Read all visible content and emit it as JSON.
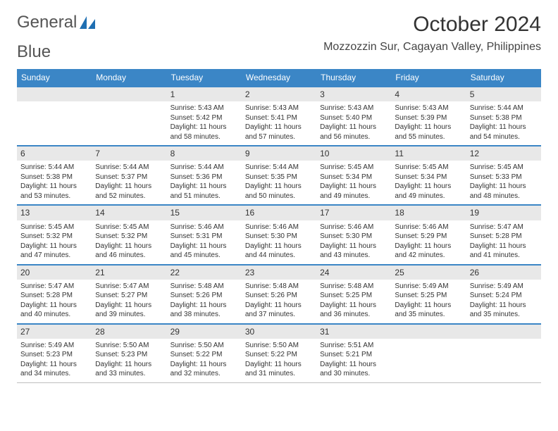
{
  "brand": {
    "word1": "General",
    "word2": "Blue"
  },
  "title": "October 2024",
  "location": "Mozzozzin Sur, Cagayan Valley, Philippines",
  "colors": {
    "header_bg": "#3b86c6",
    "header_text": "#ffffff",
    "week_border": "#3b86c6",
    "daynum_bg": "#e8e8e8",
    "text": "#333333",
    "logo_gray": "#888888",
    "logo_blue": "#1f6fb2"
  },
  "fonts": {
    "title_size_pt": 22,
    "location_size_pt": 12,
    "dayheader_size_pt": 9,
    "daynum_size_pt": 9,
    "body_size_pt": 7.5
  },
  "day_headers": [
    "Sunday",
    "Monday",
    "Tuesday",
    "Wednesday",
    "Thursday",
    "Friday",
    "Saturday"
  ],
  "weeks": [
    [
      null,
      null,
      {
        "n": "1",
        "sr": "Sunrise: 5:43 AM",
        "ss": "Sunset: 5:42 PM",
        "dl1": "Daylight: 11 hours",
        "dl2": "and 58 minutes."
      },
      {
        "n": "2",
        "sr": "Sunrise: 5:43 AM",
        "ss": "Sunset: 5:41 PM",
        "dl1": "Daylight: 11 hours",
        "dl2": "and 57 minutes."
      },
      {
        "n": "3",
        "sr": "Sunrise: 5:43 AM",
        "ss": "Sunset: 5:40 PM",
        "dl1": "Daylight: 11 hours",
        "dl2": "and 56 minutes."
      },
      {
        "n": "4",
        "sr": "Sunrise: 5:43 AM",
        "ss": "Sunset: 5:39 PM",
        "dl1": "Daylight: 11 hours",
        "dl2": "and 55 minutes."
      },
      {
        "n": "5",
        "sr": "Sunrise: 5:44 AM",
        "ss": "Sunset: 5:38 PM",
        "dl1": "Daylight: 11 hours",
        "dl2": "and 54 minutes."
      }
    ],
    [
      {
        "n": "6",
        "sr": "Sunrise: 5:44 AM",
        "ss": "Sunset: 5:38 PM",
        "dl1": "Daylight: 11 hours",
        "dl2": "and 53 minutes."
      },
      {
        "n": "7",
        "sr": "Sunrise: 5:44 AM",
        "ss": "Sunset: 5:37 PM",
        "dl1": "Daylight: 11 hours",
        "dl2": "and 52 minutes."
      },
      {
        "n": "8",
        "sr": "Sunrise: 5:44 AM",
        "ss": "Sunset: 5:36 PM",
        "dl1": "Daylight: 11 hours",
        "dl2": "and 51 minutes."
      },
      {
        "n": "9",
        "sr": "Sunrise: 5:44 AM",
        "ss": "Sunset: 5:35 PM",
        "dl1": "Daylight: 11 hours",
        "dl2": "and 50 minutes."
      },
      {
        "n": "10",
        "sr": "Sunrise: 5:45 AM",
        "ss": "Sunset: 5:34 PM",
        "dl1": "Daylight: 11 hours",
        "dl2": "and 49 minutes."
      },
      {
        "n": "11",
        "sr": "Sunrise: 5:45 AM",
        "ss": "Sunset: 5:34 PM",
        "dl1": "Daylight: 11 hours",
        "dl2": "and 49 minutes."
      },
      {
        "n": "12",
        "sr": "Sunrise: 5:45 AM",
        "ss": "Sunset: 5:33 PM",
        "dl1": "Daylight: 11 hours",
        "dl2": "and 48 minutes."
      }
    ],
    [
      {
        "n": "13",
        "sr": "Sunrise: 5:45 AM",
        "ss": "Sunset: 5:32 PM",
        "dl1": "Daylight: 11 hours",
        "dl2": "and 47 minutes."
      },
      {
        "n": "14",
        "sr": "Sunrise: 5:45 AM",
        "ss": "Sunset: 5:32 PM",
        "dl1": "Daylight: 11 hours",
        "dl2": "and 46 minutes."
      },
      {
        "n": "15",
        "sr": "Sunrise: 5:46 AM",
        "ss": "Sunset: 5:31 PM",
        "dl1": "Daylight: 11 hours",
        "dl2": "and 45 minutes."
      },
      {
        "n": "16",
        "sr": "Sunrise: 5:46 AM",
        "ss": "Sunset: 5:30 PM",
        "dl1": "Daylight: 11 hours",
        "dl2": "and 44 minutes."
      },
      {
        "n": "17",
        "sr": "Sunrise: 5:46 AM",
        "ss": "Sunset: 5:30 PM",
        "dl1": "Daylight: 11 hours",
        "dl2": "and 43 minutes."
      },
      {
        "n": "18",
        "sr": "Sunrise: 5:46 AM",
        "ss": "Sunset: 5:29 PM",
        "dl1": "Daylight: 11 hours",
        "dl2": "and 42 minutes."
      },
      {
        "n": "19",
        "sr": "Sunrise: 5:47 AM",
        "ss": "Sunset: 5:28 PM",
        "dl1": "Daylight: 11 hours",
        "dl2": "and 41 minutes."
      }
    ],
    [
      {
        "n": "20",
        "sr": "Sunrise: 5:47 AM",
        "ss": "Sunset: 5:28 PM",
        "dl1": "Daylight: 11 hours",
        "dl2": "and 40 minutes."
      },
      {
        "n": "21",
        "sr": "Sunrise: 5:47 AM",
        "ss": "Sunset: 5:27 PM",
        "dl1": "Daylight: 11 hours",
        "dl2": "and 39 minutes."
      },
      {
        "n": "22",
        "sr": "Sunrise: 5:48 AM",
        "ss": "Sunset: 5:26 PM",
        "dl1": "Daylight: 11 hours",
        "dl2": "and 38 minutes."
      },
      {
        "n": "23",
        "sr": "Sunrise: 5:48 AM",
        "ss": "Sunset: 5:26 PM",
        "dl1": "Daylight: 11 hours",
        "dl2": "and 37 minutes."
      },
      {
        "n": "24",
        "sr": "Sunrise: 5:48 AM",
        "ss": "Sunset: 5:25 PM",
        "dl1": "Daylight: 11 hours",
        "dl2": "and 36 minutes."
      },
      {
        "n": "25",
        "sr": "Sunrise: 5:49 AM",
        "ss": "Sunset: 5:25 PM",
        "dl1": "Daylight: 11 hours",
        "dl2": "and 35 minutes."
      },
      {
        "n": "26",
        "sr": "Sunrise: 5:49 AM",
        "ss": "Sunset: 5:24 PM",
        "dl1": "Daylight: 11 hours",
        "dl2": "and 35 minutes."
      }
    ],
    [
      {
        "n": "27",
        "sr": "Sunrise: 5:49 AM",
        "ss": "Sunset: 5:23 PM",
        "dl1": "Daylight: 11 hours",
        "dl2": "and 34 minutes."
      },
      {
        "n": "28",
        "sr": "Sunrise: 5:50 AM",
        "ss": "Sunset: 5:23 PM",
        "dl1": "Daylight: 11 hours",
        "dl2": "and 33 minutes."
      },
      {
        "n": "29",
        "sr": "Sunrise: 5:50 AM",
        "ss": "Sunset: 5:22 PM",
        "dl1": "Daylight: 11 hours",
        "dl2": "and 32 minutes."
      },
      {
        "n": "30",
        "sr": "Sunrise: 5:50 AM",
        "ss": "Sunset: 5:22 PM",
        "dl1": "Daylight: 11 hours",
        "dl2": "and 31 minutes."
      },
      {
        "n": "31",
        "sr": "Sunrise: 5:51 AM",
        "ss": "Sunset: 5:21 PM",
        "dl1": "Daylight: 11 hours",
        "dl2": "and 30 minutes."
      },
      null,
      null
    ]
  ]
}
